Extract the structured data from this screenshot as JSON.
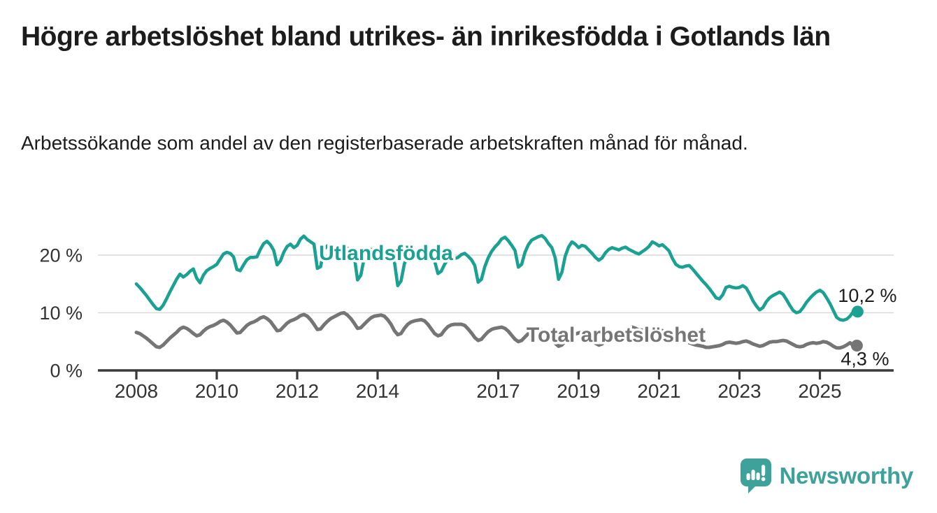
{
  "title": "Högre arbetslöshet bland utrikes- än inrikesfödda i Gotlands län",
  "subtitle": "Arbetssökande som andel av den registerbaserade arbetskraften månad för månad.",
  "branding": {
    "logo_text": "Newsworthy",
    "logo_icon": "bar-chart-speech-bubble-icon"
  },
  "colors": {
    "foreign_born_line": "#1aa191",
    "total_line": "#757575",
    "axis": "#3a3a3a",
    "gridline": "#d9d9d9",
    "text": "#1c1c1c",
    "tick_text": "#333333",
    "logo": "#3ea29b",
    "background": "#ffffff"
  },
  "chart_data": {
    "type": "line",
    "title": "Högre arbetslöshet bland utrikes- än inrikesfödda i Gotlands län",
    "subtitle": "Arbetssökande som andel av den registerbaserade arbetskraften månad för månad.",
    "unit": "%",
    "frequency": "monthly",
    "x_start": "2008-01",
    "x_end": "2025-11",
    "x_tick_years": [
      2008,
      2010,
      2012,
      2014,
      2017,
      2019,
      2021,
      2023,
      2025
    ],
    "x_tick_labels": [
      "2008",
      "2010",
      "2012",
      "2014",
      "2017",
      "2019",
      "2021",
      "2023",
      "2025"
    ],
    "y_ticks": [
      {
        "value": 0,
        "label": "0 %"
      },
      {
        "value": 10,
        "label": "10 %"
      },
      {
        "value": 20,
        "label": "20 %"
      }
    ],
    "ylim": [
      0,
      25
    ],
    "grid": "horizontal",
    "legend_position": "inline-labels",
    "series": [
      {
        "name": "Utlandsfödda",
        "color": "#1aa191",
        "end_value": 10.2,
        "end_label": "10,2 %",
        "values": [
          15.0,
          14.4,
          13.7,
          13.0,
          12.2,
          11.4,
          10.7,
          10.6,
          11.3,
          12.4,
          13.6,
          14.7,
          15.8,
          16.7,
          16.2,
          16.6,
          17.2,
          17.6,
          16.0,
          15.2,
          16.5,
          17.3,
          17.7,
          18.0,
          18.4,
          19.3,
          20.2,
          20.5,
          20.3,
          19.7,
          17.5,
          17.3,
          18.3,
          19.2,
          19.6,
          19.6,
          19.7,
          21.0,
          22.0,
          22.4,
          21.8,
          20.8,
          18.3,
          19.0,
          20.5,
          21.5,
          21.9,
          21.3,
          21.7,
          22.8,
          23.3,
          22.7,
          22.3,
          21.9,
          17.7,
          18.0,
          21.0,
          21.6,
          21.2,
          21.0,
          20.8,
          21.4,
          21.7,
          21.2,
          20.7,
          19.9,
          15.7,
          16.5,
          19.5,
          20.7,
          21.0,
          20.9,
          20.9,
          21.2,
          21.0,
          20.5,
          19.8,
          18.9,
          14.7,
          15.5,
          18.5,
          19.8,
          20.3,
          20.3,
          20.0,
          20.6,
          20.8,
          20.3,
          19.7,
          19.0,
          16.8,
          17.2,
          18.4,
          19.3,
          19.6,
          19.4,
          19.6,
          20.1,
          20.3,
          19.8,
          19.2,
          18.2,
          15.3,
          15.8,
          18.0,
          19.5,
          20.6,
          21.4,
          22.0,
          22.8,
          23.1,
          22.5,
          21.7,
          20.8,
          17.9,
          18.4,
          20.5,
          21.8,
          22.6,
          22.9,
          23.2,
          23.4,
          22.9,
          22.0,
          21.3,
          19.5,
          15.8,
          17.0,
          19.8,
          21.4,
          22.3,
          21.9,
          21.3,
          21.7,
          21.5,
          20.9,
          20.3,
          19.6,
          19.1,
          19.5,
          20.4,
          21.0,
          21.3,
          21.1,
          20.9,
          21.2,
          21.4,
          21.0,
          20.7,
          20.4,
          20.2,
          20.6,
          21.0,
          21.5,
          22.3,
          22.0,
          21.6,
          21.8,
          21.3,
          20.7,
          19.4,
          18.4,
          18.0,
          17.9,
          18.1,
          18.2,
          17.6,
          16.9,
          16.2,
          15.5,
          14.9,
          14.2,
          13.4,
          12.6,
          12.4,
          13.1,
          14.4,
          14.6,
          14.4,
          14.3,
          14.4,
          14.7,
          14.3,
          13.3,
          12.1,
          11.2,
          10.5,
          10.9,
          11.9,
          12.6,
          13.0,
          13.3,
          13.6,
          13.2,
          12.3,
          11.3,
          10.4,
          10.0,
          10.2,
          10.9,
          11.8,
          12.5,
          13.1,
          13.6,
          13.9,
          13.5,
          12.6,
          11.6,
          10.4,
          9.2,
          8.8,
          8.7,
          8.9,
          9.4,
          10.2
        ]
      },
      {
        "name": "Total arbetslöshet",
        "color": "#757575",
        "end_value": 4.3,
        "end_label": "4,3 %",
        "values": [
          6.6,
          6.4,
          6.0,
          5.6,
          5.1,
          4.6,
          4.1,
          4.0,
          4.4,
          5.0,
          5.6,
          6.1,
          6.6,
          7.2,
          7.5,
          7.3,
          6.9,
          6.4,
          6.0,
          6.2,
          6.8,
          7.3,
          7.6,
          7.8,
          8.1,
          8.5,
          8.7,
          8.4,
          7.9,
          7.2,
          6.5,
          6.6,
          7.2,
          7.8,
          8.2,
          8.4,
          8.7,
          9.1,
          9.3,
          9.0,
          8.5,
          7.7,
          6.9,
          7.0,
          7.6,
          8.2,
          8.6,
          8.8,
          9.1,
          9.5,
          9.7,
          9.4,
          8.8,
          8.0,
          7.1,
          7.2,
          7.9,
          8.5,
          9.0,
          9.3,
          9.6,
          9.9,
          10.0,
          9.6,
          9.0,
          8.2,
          7.3,
          7.4,
          8.0,
          8.6,
          9.1,
          9.4,
          9.5,
          9.6,
          9.4,
          8.8,
          8.0,
          6.9,
          6.2,
          6.4,
          7.3,
          8.0,
          8.4,
          8.6,
          8.7,
          8.8,
          8.6,
          8.0,
          7.2,
          6.4,
          6.0,
          6.2,
          7.0,
          7.6,
          7.9,
          8.0,
          8.0,
          8.0,
          7.8,
          7.2,
          6.5,
          5.7,
          5.2,
          5.4,
          6.1,
          6.7,
          7.1,
          7.3,
          7.4,
          7.5,
          7.3,
          6.8,
          6.1,
          5.4,
          5.0,
          5.2,
          5.8,
          6.4,
          6.7,
          6.9,
          7.0,
          7.0,
          6.8,
          6.2,
          5.5,
          4.7,
          4.2,
          4.4,
          5.1,
          5.7,
          6.1,
          6.3,
          6.5,
          6.6,
          6.4,
          5.9,
          5.3,
          4.7,
          4.4,
          4.6,
          5.2,
          5.7,
          6.0,
          6.2,
          6.4,
          6.6,
          7.0,
          7.4,
          7.5,
          7.3,
          7.0,
          7.0,
          7.1,
          7.2,
          7.1,
          7.0,
          7.0,
          6.9,
          6.7,
          6.3,
          5.8,
          5.3,
          5.0,
          4.9,
          4.9,
          4.8,
          4.6,
          4.4,
          4.3,
          4.2,
          4.0,
          4.0,
          4.1,
          4.2,
          4.3,
          4.5,
          4.8,
          4.9,
          4.8,
          4.7,
          4.8,
          5.0,
          5.1,
          4.9,
          4.6,
          4.4,
          4.2,
          4.3,
          4.6,
          4.9,
          5.0,
          5.0,
          5.1,
          5.2,
          5.1,
          4.8,
          4.5,
          4.2,
          4.1,
          4.2,
          4.5,
          4.7,
          4.8,
          4.7,
          4.8,
          5.0,
          4.9,
          4.6,
          4.2,
          3.9,
          3.9,
          4.1,
          4.4,
          4.8,
          4.3
        ]
      }
    ]
  }
}
